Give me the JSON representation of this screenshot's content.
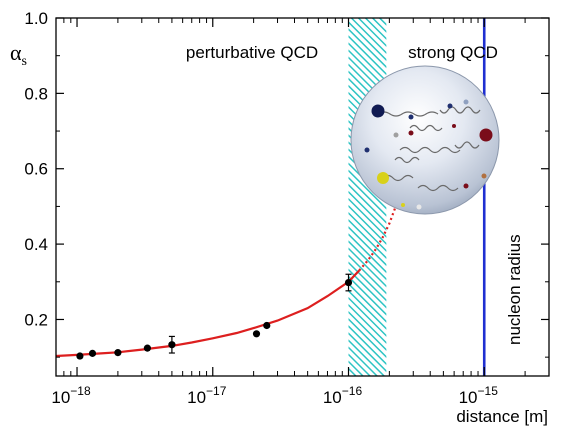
{
  "chart_data": {
    "type": "scatter",
    "xscale": "log",
    "xlim": [
      7e-19,
      3e-15
    ],
    "ylim": [
      0.05,
      1.0
    ],
    "ylabel": "α",
    "ylabel_sub": "s",
    "xlabel": "distance [m]",
    "x_ticks": [
      {
        "value": 1e-18,
        "base": "10",
        "exp": "−18"
      },
      {
        "value": 1e-17,
        "base": "10",
        "exp": "−17"
      },
      {
        "value": 1e-16,
        "base": "10",
        "exp": "−16"
      },
      {
        "value": 1e-15,
        "base": "10",
        "exp": "−15"
      }
    ],
    "y_ticks": [
      {
        "value": 0.2,
        "label": "0.2"
      },
      {
        "value": 0.4,
        "label": "0.4"
      },
      {
        "value": 0.6,
        "label": "0.6"
      },
      {
        "value": 0.8,
        "label": "0.8"
      },
      {
        "value": 1.0,
        "label": "1.0"
      }
    ],
    "regions": [
      {
        "label": "perturbative QCD"
      },
      {
        "label": "strong QCD"
      }
    ],
    "transition_band": {
      "x_from": 1e-16,
      "x_to": 1.9e-16,
      "color": "#2ec4c4"
    },
    "nucleon_radius": {
      "x": 1e-15,
      "label": "nucleon radius",
      "color": "#1f2fd1"
    },
    "curve": {
      "color": "#dd1f1f",
      "solid": [
        [
          7e-19,
          0.103
        ],
        [
          1e-18,
          0.106
        ],
        [
          1.5e-18,
          0.11
        ],
        [
          2e-18,
          0.113
        ],
        [
          3e-18,
          0.12
        ],
        [
          5e-18,
          0.13
        ],
        [
          7e-18,
          0.139
        ],
        [
          1e-17,
          0.15
        ],
        [
          1.5e-17,
          0.164
        ],
        [
          2e-17,
          0.177
        ],
        [
          3e-17,
          0.197
        ],
        [
          5e-17,
          0.23
        ],
        [
          7e-17,
          0.262
        ],
        [
          1e-16,
          0.3
        ],
        [
          1.2e-16,
          0.33
        ]
      ],
      "dotted": [
        [
          1.2e-16,
          0.33
        ],
        [
          1.4e-16,
          0.358
        ],
        [
          1.6e-16,
          0.388
        ],
        [
          1.8e-16,
          0.42
        ],
        [
          2e-16,
          0.455
        ],
        [
          2.2e-16,
          0.495
        ]
      ]
    },
    "points": [
      {
        "x": 1.05e-18,
        "y": 0.103,
        "err": 0.0
      },
      {
        "x": 1.3e-18,
        "y": 0.11,
        "err": 0.0
      },
      {
        "x": 2e-18,
        "y": 0.112,
        "err": 0.0
      },
      {
        "x": 3.3e-18,
        "y": 0.124,
        "err": 0.0
      },
      {
        "x": 5e-18,
        "y": 0.133,
        "err": 0.022
      },
      {
        "x": 2.1e-17,
        "y": 0.162,
        "err": 0.0
      },
      {
        "x": 2.5e-17,
        "y": 0.184,
        "err": 0.0
      },
      {
        "x": 1e-16,
        "y": 0.298,
        "err": 0.022
      }
    ],
    "grid": false,
    "legend": "none"
  }
}
